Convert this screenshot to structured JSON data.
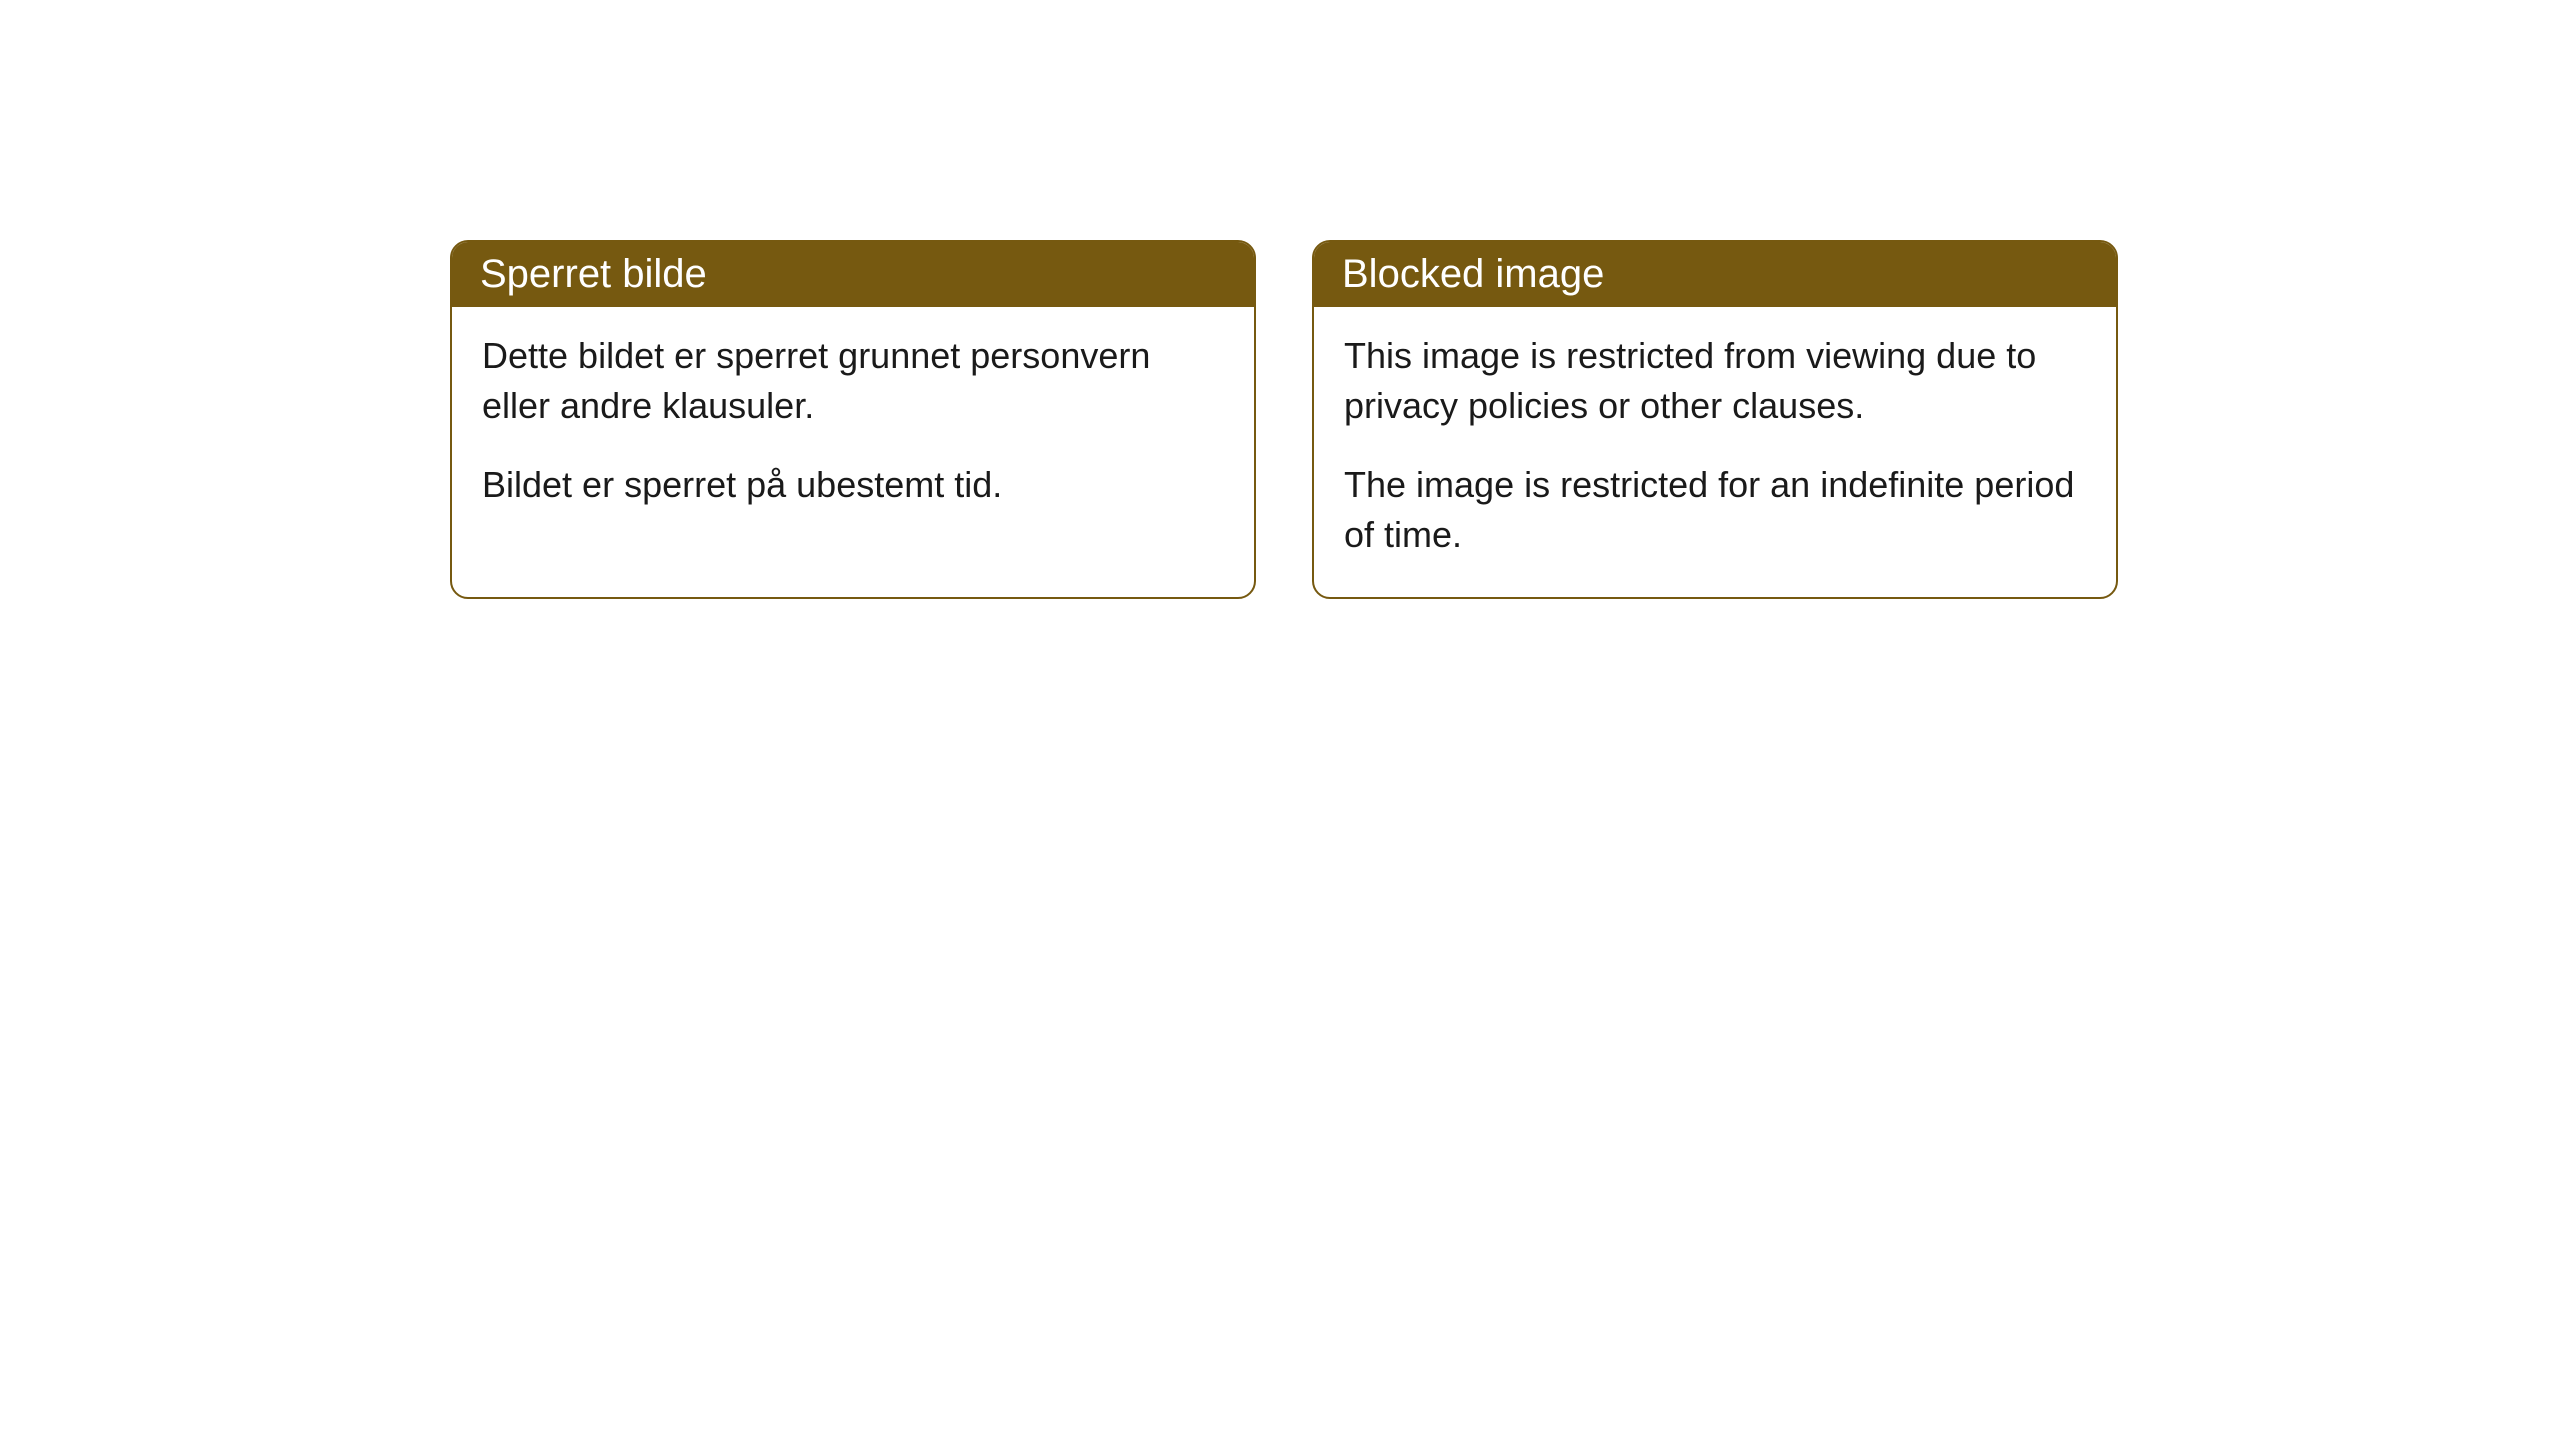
{
  "cards": [
    {
      "title": "Sperret bilde",
      "paragraph1": "Dette bildet er sperret grunnet personvern eller andre klausuler.",
      "paragraph2": "Bildet er sperret på ubestemt tid."
    },
    {
      "title": "Blocked image",
      "paragraph1": "This image is restricted from viewing due to privacy policies or other clauses.",
      "paragraph2": "The image is restricted for an indefinite period of time."
    }
  ],
  "styling": {
    "header_bg_color": "#765910",
    "header_text_color": "#ffffff",
    "border_color": "#765910",
    "body_bg_color": "#ffffff",
    "body_text_color": "#1a1a1a",
    "border_radius": 18,
    "header_fontsize": 40,
    "body_fontsize": 36
  }
}
